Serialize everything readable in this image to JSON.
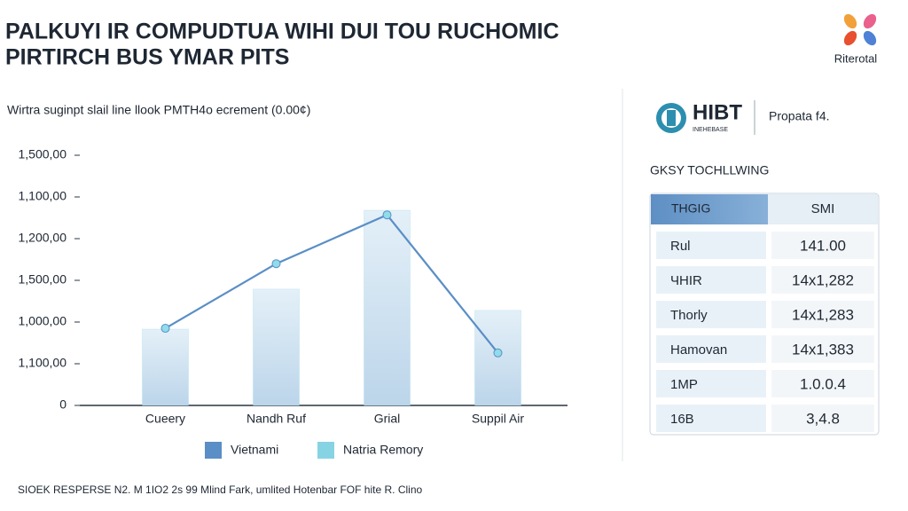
{
  "chart_data": {
    "type": "bar-line",
    "title": "PALKUYI IR COMPUDTUA WIHI DUI TOU RUCHOMIC",
    "subtitle": "PIRTIRCH BUS YMAR PITS",
    "axis_note": "Wirtra suginpt slail line llook PMTH4o ecrement (0.00¢)",
    "categories": [
      "Cueery",
      "Nandh Ruf",
      "Grial",
      "Suppil Air"
    ],
    "ylim": [
      0,
      6
    ],
    "yticks": [
      {
        "value": 0,
        "label": "0"
      },
      {
        "value": 1,
        "label": "1,100,00"
      },
      {
        "value": 2,
        "label": "1,000,00"
      },
      {
        "value": 3,
        "label": "1,500,00"
      },
      {
        "value": 4,
        "label": "1,200,00"
      },
      {
        "value": 5,
        "label": "1,100,00"
      },
      {
        "value": 6,
        "label": "1,500,00"
      }
    ],
    "series": [
      {
        "name": "Vietnami",
        "color": "#5a8ec6",
        "kind": "line",
        "values": [
          1.85,
          3.4,
          4.57,
          1.26
        ]
      },
      {
        "name": "Natria Remory",
        "color": "#86d4e3",
        "kind": "bar",
        "values": [
          1.83,
          2.79,
          4.68,
          2.28
        ]
      }
    ],
    "grid": false,
    "legend": "bottom"
  },
  "brand": {
    "name": "Riterotal"
  },
  "panel": {
    "logo": "HIBT",
    "logo_sub": "INEHEBASE",
    "caption": "Propata f4.",
    "heading": "GKSY TOCHLLWING",
    "table": {
      "header": [
        "THGIG",
        "SMI"
      ],
      "rows": [
        [
          "Rul",
          "141.00"
        ],
        [
          "ЧHIR",
          "14x1,282"
        ],
        [
          "Thorly",
          "14x1,283"
        ],
        [
          "Hamovan",
          "14x1,383"
        ],
        [
          "1MP",
          "1.0.0.4"
        ],
        [
          "16B",
          "3,4.8"
        ]
      ]
    }
  },
  "footer": "SIOEK RESPERSE N2. M 1IO2 2s 99 Mlind Fark, umlited Hotenbar FOF hite R. Clino"
}
